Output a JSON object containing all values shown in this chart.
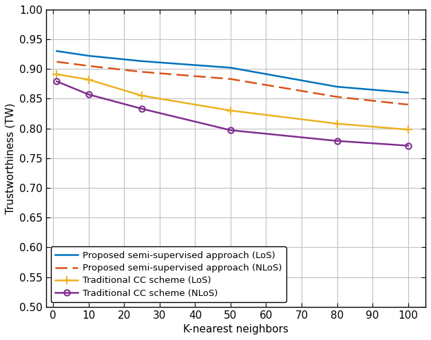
{
  "x": [
    1,
    10,
    25,
    50,
    80,
    100
  ],
  "proposed_los": [
    0.93,
    0.922,
    0.913,
    0.902,
    0.87,
    0.86
  ],
  "proposed_nlos": [
    0.912,
    0.905,
    0.895,
    0.883,
    0.853,
    0.84
  ],
  "traditional_los": [
    0.891,
    0.882,
    0.855,
    0.83,
    0.808,
    0.798
  ],
  "traditional_nlos": [
    0.879,
    0.857,
    0.833,
    0.797,
    0.779,
    0.771
  ],
  "proposed_los_color": "#0072BD",
  "proposed_nlos_color": "#D95319",
  "traditional_los_color": "#EDB120",
  "traditional_nlos_color": "#7E2F8E",
  "xlabel": "K-nearest neighbors",
  "ylabel": "Trustworthiness (TW)",
  "xlim": [
    -2,
    105
  ],
  "ylim": [
    0.5,
    1.0
  ],
  "yticks": [
    0.5,
    0.55,
    0.6,
    0.65,
    0.7,
    0.75,
    0.8,
    0.85,
    0.9,
    0.95,
    1.0
  ],
  "xticks": [
    0,
    10,
    20,
    30,
    40,
    50,
    60,
    70,
    80,
    90,
    100
  ],
  "legend_labels": [
    "Proposed semi-supervised approach (LoS)",
    "Proposed semi-supervised approach (NLoS)",
    "Traditional CC scheme (LoS)",
    "Traditional CC scheme (NLoS)"
  ],
  "background_color": "#FFFFFF",
  "grid_color": "#C0C0C0"
}
